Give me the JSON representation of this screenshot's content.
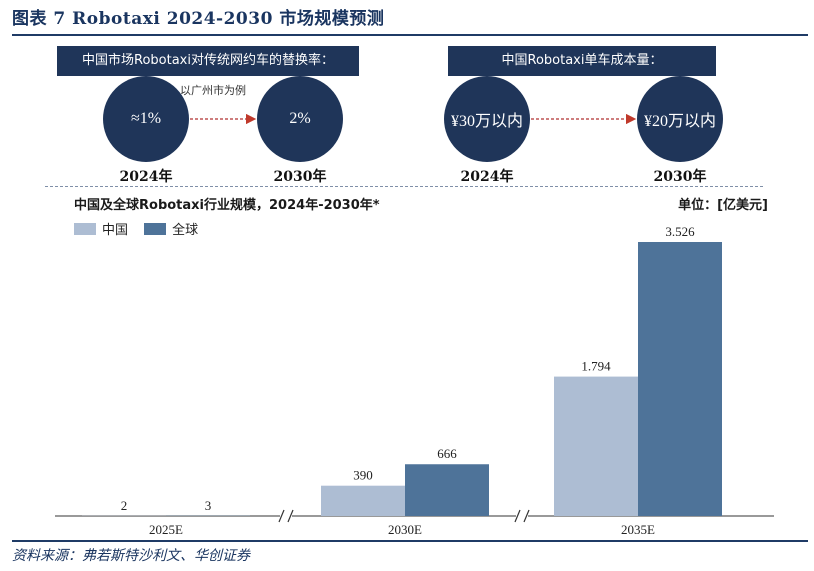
{
  "figure": {
    "title": "图表 7   Robotaxi 2024-2030 市场规模预测",
    "source": "资料来源：弗若斯特沙利文、华创证券"
  },
  "top_left": {
    "header": "中国市场Robotaxi对传统网约车的替换率：",
    "note": "以广州市为例",
    "circles": [
      {
        "value": "≈1%",
        "year": "2024年"
      },
      {
        "value": "2%",
        "year": "2030年"
      }
    ]
  },
  "top_right": {
    "header": "中国Robotaxi单车成本量：",
    "circles": [
      {
        "value": "¥30万以内",
        "year": "2024年"
      },
      {
        "value": "¥20万以内",
        "year": "2030年"
      }
    ]
  },
  "chart_data": {
    "type": "bar",
    "title": "中国及全球Robotaxi行业规模，2024年-2030年*",
    "unit_label": "单位：[亿美元]",
    "categories": [
      "2025E",
      "2030E",
      "2035E"
    ],
    "series": [
      {
        "name": "中国",
        "values": [
          2,
          390,
          1794
        ],
        "labels": [
          "2",
          "390",
          "1.794"
        ],
        "color": "#adbdd3"
      },
      {
        "name": "全球",
        "values": [
          3,
          666,
          3526
        ],
        "labels": [
          "3",
          "666",
          "3.526"
        ],
        "color": "#4e7399"
      }
    ],
    "ylim": [
      0,
      3526
    ],
    "grid": false,
    "legend_position": "top-left",
    "axis_breaks": true
  }
}
